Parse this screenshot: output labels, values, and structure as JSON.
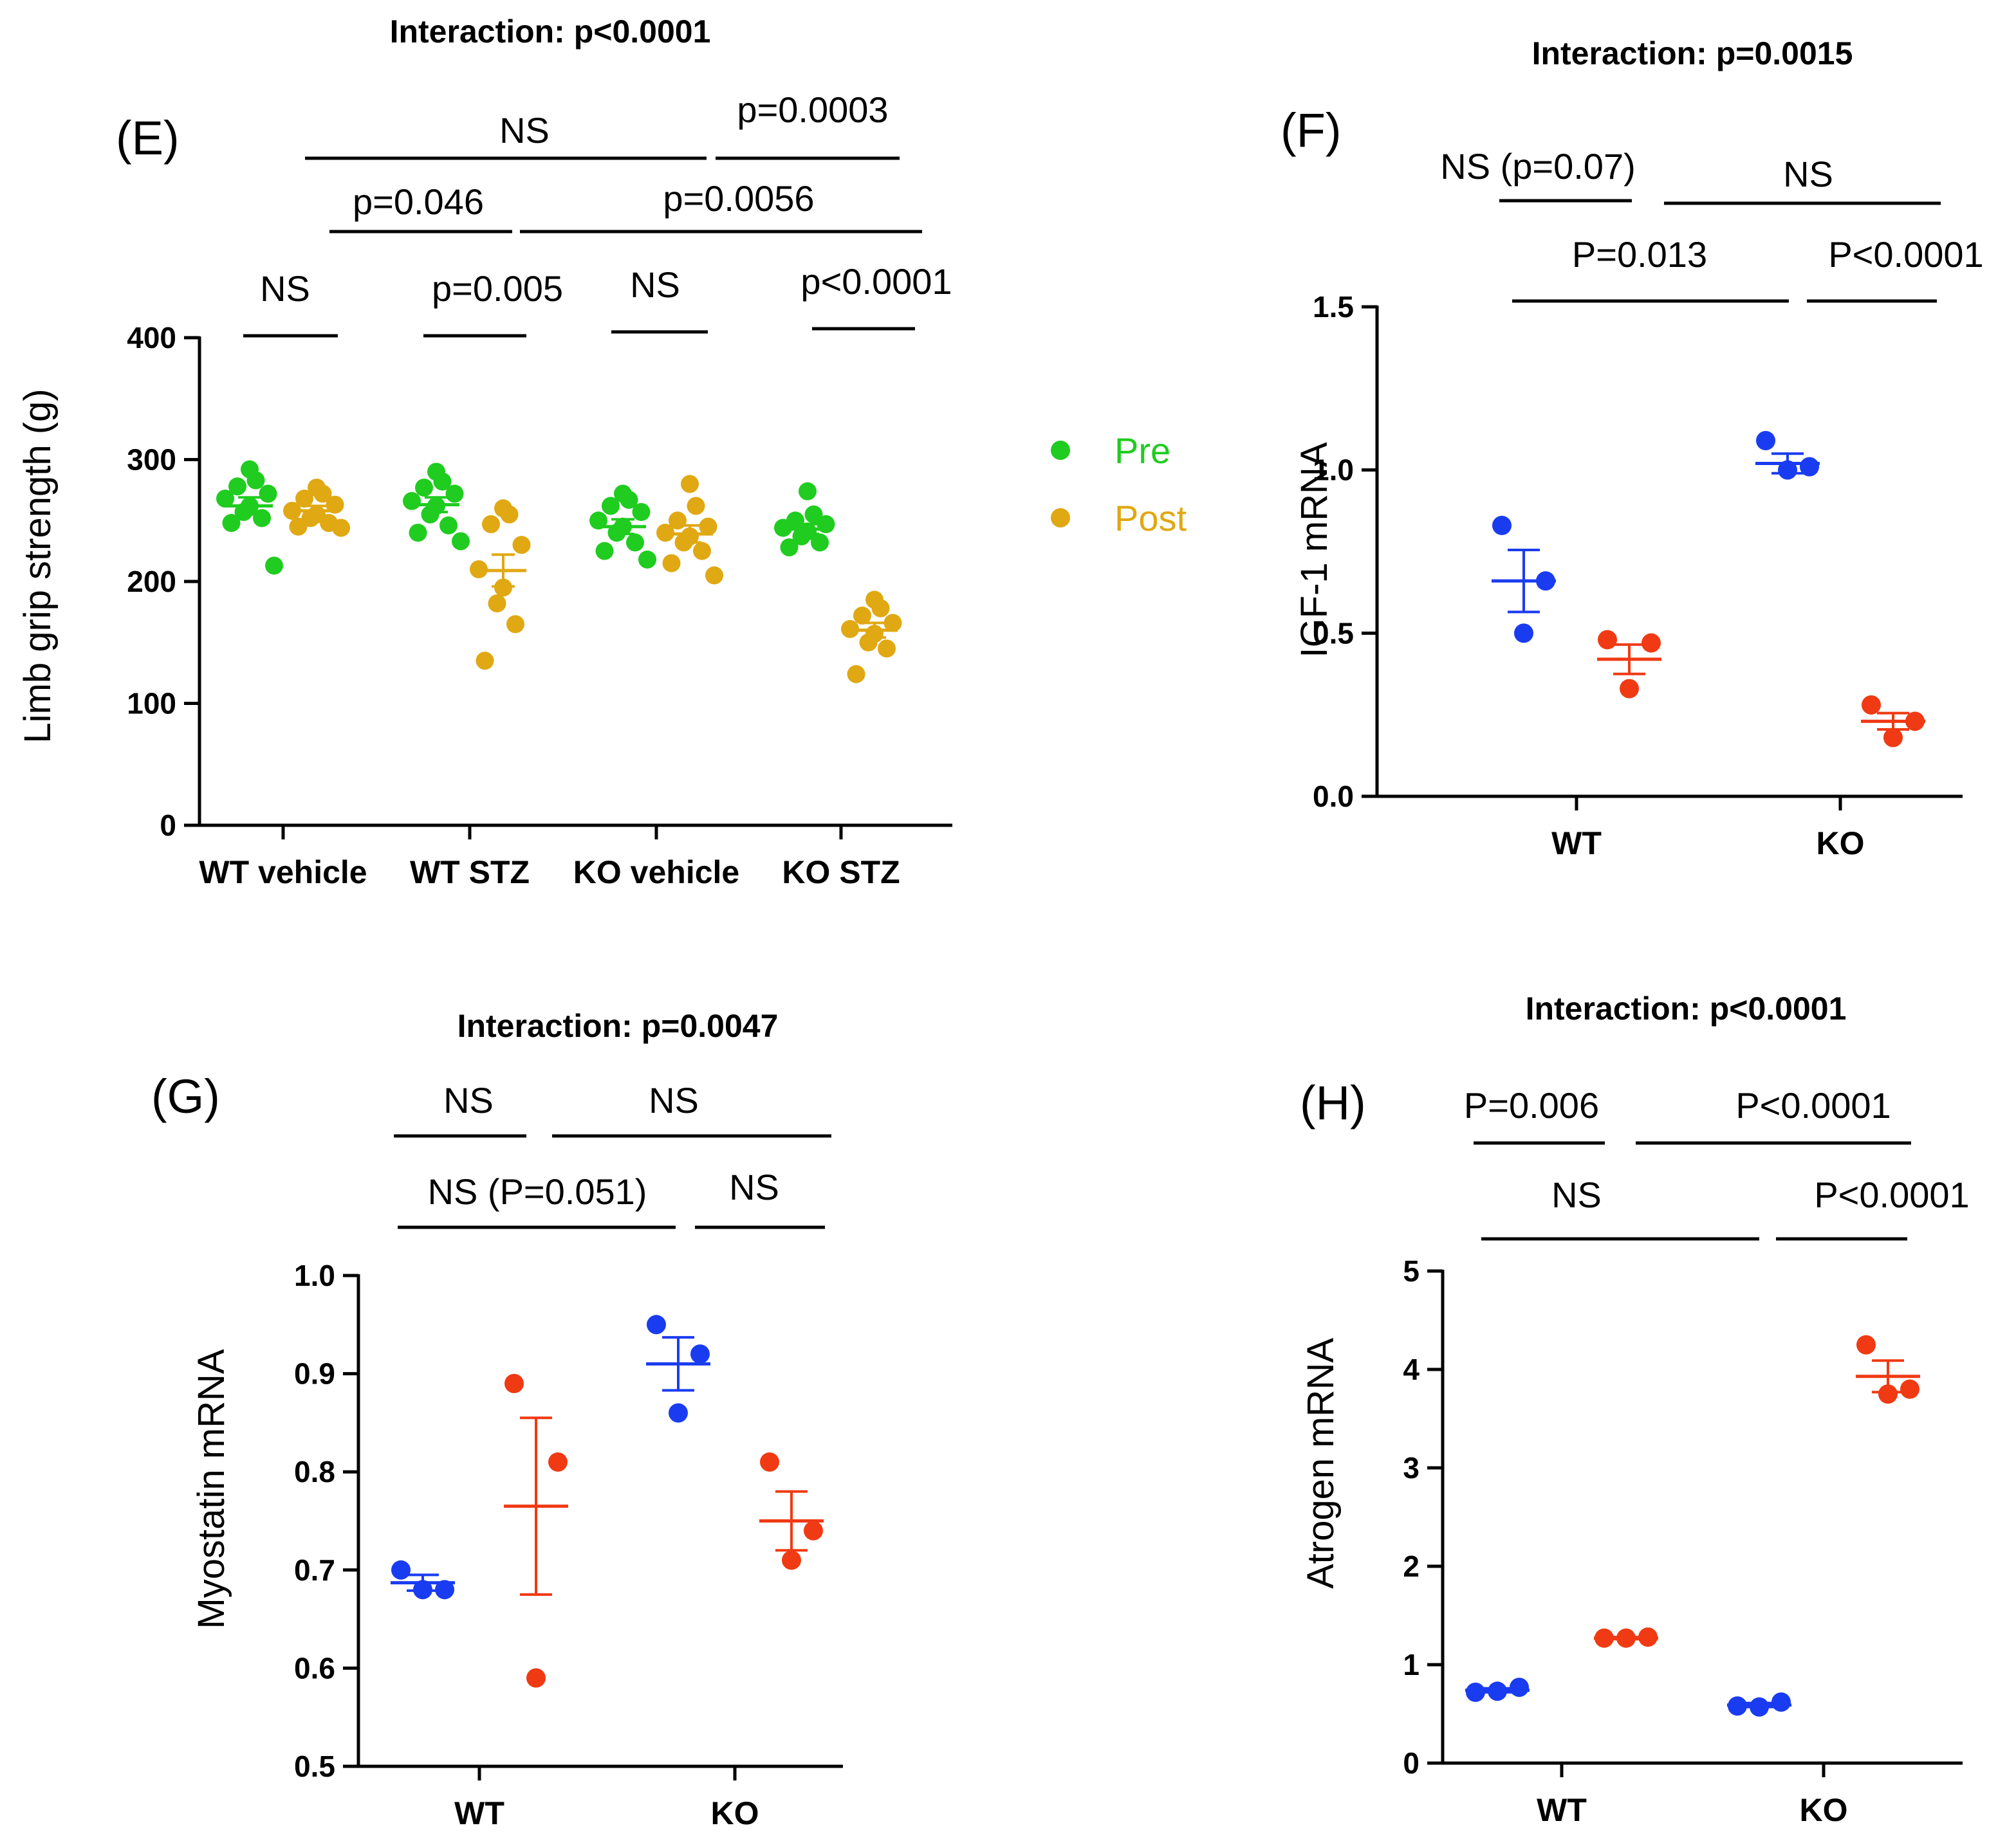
{
  "chart_data": [
    {
      "panel": "(E)",
      "type": "scatter",
      "title": "Interaction: p<0.0001",
      "ylabel": "Limb grip strength (g)",
      "xlabel": "",
      "ylim": [
        0,
        400
      ],
      "yticks": [
        0,
        100,
        200,
        300,
        400
      ],
      "categories": [
        "WT vehicle",
        "WT STZ",
        "KO vehicle",
        "KO STZ"
      ],
      "legend": [
        {
          "name": "Pre",
          "color": "#1fcc1f"
        },
        {
          "name": "Post",
          "color": "#e0a812"
        }
      ],
      "series": [
        {
          "name": "Pre",
          "color": "#1fcc1f",
          "groups": [
            {
              "category": "WT vehicle",
              "points": [
                292,
                283,
                278,
                272,
                268,
                262,
                257,
                252,
                248,
                213
              ],
              "mean": 262,
              "sem": 7
            },
            {
              "category": "WT STZ",
              "points": [
                290,
                282,
                277,
                272,
                266,
                262,
                255,
                246,
                240,
                233
              ],
              "mean": 263,
              "sem": 6
            },
            {
              "category": "KO vehicle",
              "points": [
                272,
                267,
                262,
                257,
                250,
                245,
                240,
                232,
                225,
                218
              ],
              "mean": 245,
              "sem": 6
            },
            {
              "category": "KO STZ",
              "points": [
                274,
                255,
                250,
                247,
                244,
                241,
                237,
                232,
                228
              ],
              "mean": 243,
              "sem": 4
            }
          ]
        },
        {
          "name": "Post",
          "color": "#e0a812",
          "groups": [
            {
              "category": "WT vehicle",
              "points": [
                277,
                272,
                268,
                263,
                258,
                255,
                252,
                248,
                245,
                244
              ],
              "mean": 258,
              "sem": 4
            },
            {
              "category": "WT STZ",
              "points": [
                260,
                255,
                247,
                230,
                210,
                195,
                182,
                165,
                135
              ],
              "mean": 209,
              "sem": 13
            },
            {
              "category": "KO vehicle",
              "points": [
                280,
                262,
                250,
                245,
                240,
                237,
                232,
                225,
                215,
                205
              ],
              "mean": 239,
              "sem": 7
            },
            {
              "category": "KO STZ",
              "points": [
                185,
                178,
                172,
                166,
                161,
                157,
                150,
                145,
                124
              ],
              "mean": 160,
              "sem": 6
            }
          ]
        }
      ],
      "brackets": [
        {
          "label": "NS",
          "from": "WT vehicle Pre",
          "to": "WT vehicle Post"
        },
        {
          "label": "p=0.005",
          "from": "WT STZ Pre",
          "to": "WT STZ Post"
        },
        {
          "label": "NS",
          "from": "KO vehicle Pre",
          "to": "KO vehicle Post"
        },
        {
          "label": "p<0.0001",
          "from": "KO STZ Pre",
          "to": "KO STZ Post"
        },
        {
          "label": "p=0.046",
          "from": "WT vehicle Post",
          "to": "WT STZ Post"
        },
        {
          "label": "p=0.0056",
          "from": "WT STZ Post",
          "to": "KO STZ Post"
        },
        {
          "label": "NS",
          "from": "WT vehicle Post",
          "to": "KO vehicle Post"
        },
        {
          "label": "p=0.0003",
          "from": "KO vehicle Post",
          "to": "KO STZ Post"
        }
      ]
    },
    {
      "panel": "(F)",
      "type": "scatter",
      "title": "Interaction: p=0.0015",
      "ylabel": "IGF-1 mRNA",
      "xlabel": "",
      "ylim": [
        0,
        1.5
      ],
      "yticks": [
        "0.0",
        "0.5",
        "1.0",
        "1.5"
      ],
      "categories": [
        "WT",
        "KO"
      ],
      "groups": [
        {
          "category": "WT",
          "color": "#1a3cf0",
          "points": [
            0.83,
            0.66,
            0.5
          ],
          "mean": 0.66,
          "sem": 0.095
        },
        {
          "category": "WT",
          "color": "#f03a14",
          "points": [
            0.48,
            0.47,
            0.33
          ],
          "mean": 0.42,
          "sem": 0.045
        },
        {
          "category": "KO",
          "color": "#1a3cf0",
          "points": [
            1.09,
            1.01,
            1.0
          ],
          "mean": 1.02,
          "sem": 0.03
        },
        {
          "category": "KO",
          "color": "#f03a14",
          "points": [
            0.28,
            0.23,
            0.18
          ],
          "mean": 0.23,
          "sem": 0.025
        }
      ],
      "brackets": [
        {
          "label": "NS (p=0.07)",
          "from": "WT blue",
          "to": "WT red"
        },
        {
          "label": "NS",
          "from": "WT red",
          "to": "KO red"
        },
        {
          "label": "P=0.013",
          "from": "WT blue",
          "to": "KO blue"
        },
        {
          "label": "P<0.0001",
          "from": "KO blue",
          "to": "KO red"
        }
      ]
    },
    {
      "panel": "(G)",
      "type": "scatter",
      "title": "Interaction: p=0.0047",
      "ylabel": "Myostatin mRNA",
      "xlabel": "",
      "ylim": [
        0.5,
        1.0
      ],
      "yticks": [
        "0.5",
        "0.6",
        "0.7",
        "0.8",
        "0.9",
        "1.0"
      ],
      "categories": [
        "WT",
        "KO"
      ],
      "groups": [
        {
          "category": "WT",
          "color": "#1a3cf0",
          "points": [
            0.7,
            0.68,
            0.68
          ],
          "mean": 0.687,
          "sem": 0.008
        },
        {
          "category": "WT",
          "color": "#f03a14",
          "points": [
            0.89,
            0.81,
            0.59
          ],
          "mean": 0.765,
          "sem": 0.09
        },
        {
          "category": "KO",
          "color": "#1a3cf0",
          "points": [
            0.95,
            0.92,
            0.86
          ],
          "mean": 0.91,
          "sem": 0.027
        },
        {
          "category": "KO",
          "color": "#f03a14",
          "points": [
            0.81,
            0.74,
            0.71
          ],
          "mean": 0.75,
          "sem": 0.03
        }
      ],
      "brackets": [
        {
          "label": "NS",
          "from": "WT blue",
          "to": "WT red"
        },
        {
          "label": "NS",
          "from": "WT red",
          "to": "KO red"
        },
        {
          "label": "NS (P=0.051)",
          "from": "WT blue",
          "to": "KO blue"
        },
        {
          "label": "NS",
          "from": "KO blue",
          "to": "KO red"
        }
      ]
    },
    {
      "panel": "(H)",
      "type": "scatter",
      "title": "Interaction: p<0.0001",
      "ylabel": "Atrogen mRNA",
      "xlabel": "",
      "ylim": [
        0,
        5
      ],
      "yticks": [
        "0",
        "1",
        "2",
        "3",
        "4",
        "5"
      ],
      "categories": [
        "WT",
        "KO"
      ],
      "groups": [
        {
          "category": "WT",
          "color": "#1a3cf0",
          "points": [
            0.72,
            0.77,
            0.73
          ],
          "mean": 0.74,
          "sem": 0.02
        },
        {
          "category": "WT",
          "color": "#f03a14",
          "points": [
            1.27,
            1.28,
            1.27
          ],
          "mean": 1.27,
          "sem": 0.01
        },
        {
          "category": "KO",
          "color": "#1a3cf0",
          "points": [
            0.58,
            0.62,
            0.57
          ],
          "mean": 0.59,
          "sem": 0.02
        },
        {
          "category": "KO",
          "color": "#f03a14",
          "points": [
            4.25,
            3.8,
            3.75
          ],
          "mean": 3.93,
          "sem": 0.16
        }
      ],
      "brackets": [
        {
          "label": "P=0.006",
          "from": "WT blue",
          "to": "WT red"
        },
        {
          "label": "P<0.0001",
          "from": "WT red",
          "to": "KO red"
        },
        {
          "label": "NS",
          "from": "WT blue",
          "to": "KO blue"
        },
        {
          "label": "P<0.0001",
          "from": "KO blue",
          "to": "KO red"
        }
      ]
    }
  ]
}
